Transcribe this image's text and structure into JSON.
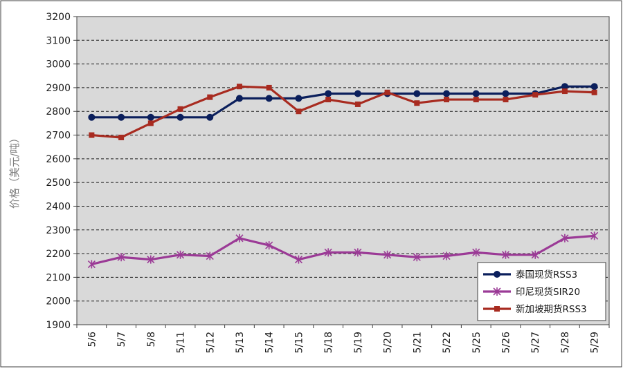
{
  "chart_data": {
    "type": "line",
    "title": "",
    "ylabel": "价格（美元/吨）",
    "xlabel": "",
    "categories": [
      "5/6",
      "5/7",
      "5/8",
      "5/11",
      "5/12",
      "5/13",
      "5/14",
      "5/15",
      "5/18",
      "5/19",
      "5/20",
      "5/21",
      "5/22",
      "5/25",
      "5/26",
      "5/27",
      "5/28",
      "5/29"
    ],
    "ylim": [
      1900,
      3200
    ],
    "yticks": [
      1900,
      2000,
      2100,
      2200,
      2300,
      2400,
      2500,
      2600,
      2700,
      2800,
      2900,
      3000,
      3100,
      3200
    ],
    "grid": true,
    "legend_position": "bottom-right",
    "plot_background": "#d9d9d9",
    "series": [
      {
        "name": "泰国现货RSS3",
        "color": "#0b1f5c",
        "marker": "circle",
        "values": [
          2775,
          2775,
          2775,
          2775,
          2775,
          2855,
          2855,
          2855,
          2875,
          2875,
          2875,
          2875,
          2875,
          2875,
          2875,
          2875,
          2905,
          2905
        ]
      },
      {
        "name": "印尼现货SIR20",
        "color": "#9b3a96",
        "marker": "star",
        "values": [
          2155,
          2185,
          2175,
          2195,
          2190,
          2265,
          2235,
          2175,
          2205,
          2205,
          2195,
          2185,
          2190,
          2205,
          2195,
          2195,
          2265,
          2275
        ]
      },
      {
        "name": "新加坡期货RSS3",
        "color": "#a82b20",
        "marker": "square",
        "values": [
          2700,
          2690,
          2750,
          2810,
          2860,
          2905,
          2900,
          2800,
          2850,
          2830,
          2880,
          2835,
          2850,
          2850,
          2850,
          2870,
          2885,
          2880
        ]
      }
    ]
  }
}
